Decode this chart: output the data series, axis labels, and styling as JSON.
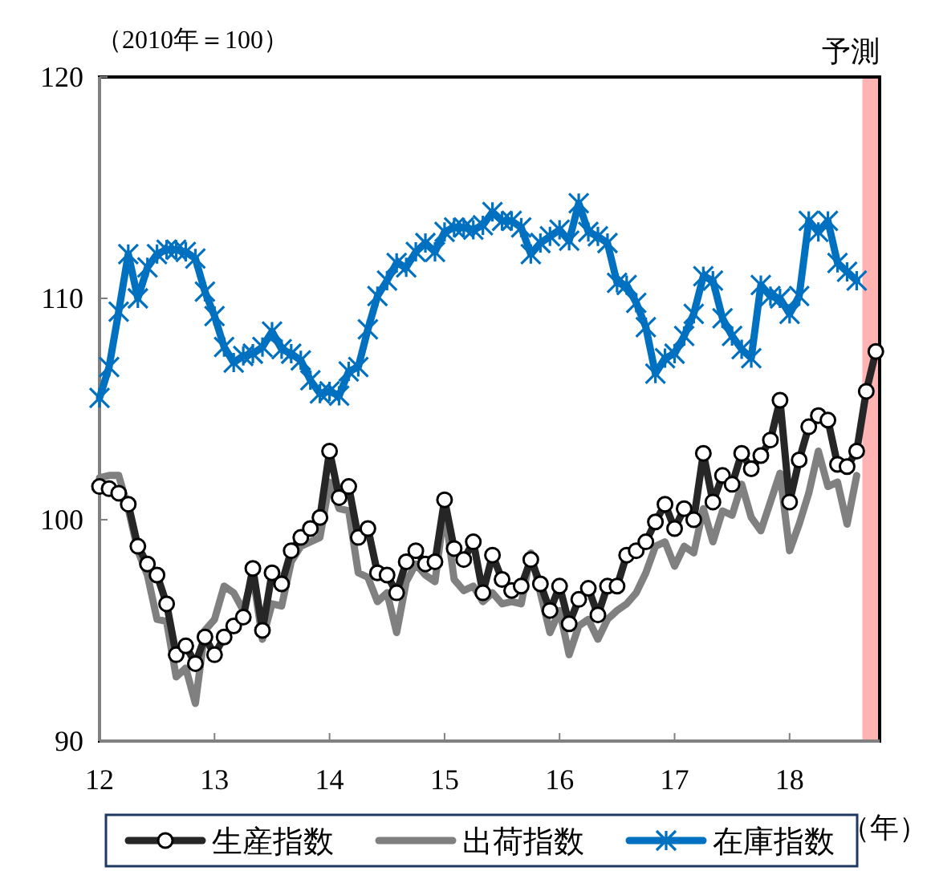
{
  "chart_data": {
    "type": "line",
    "ylabel": "（2010年＝100）",
    "xlabel": "（年）",
    "x": [
      "2012-01",
      "2012-02",
      "2012-03",
      "2012-04",
      "2012-05",
      "2012-06",
      "2012-07",
      "2012-08",
      "2012-09",
      "2012-10",
      "2012-11",
      "2012-12",
      "2013-01",
      "2013-02",
      "2013-03",
      "2013-04",
      "2013-05",
      "2013-06",
      "2013-07",
      "2013-08",
      "2013-09",
      "2013-10",
      "2013-11",
      "2013-12",
      "2014-01",
      "2014-02",
      "2014-03",
      "2014-04",
      "2014-05",
      "2014-06",
      "2014-07",
      "2014-08",
      "2014-09",
      "2014-10",
      "2014-11",
      "2014-12",
      "2015-01",
      "2015-02",
      "2015-03",
      "2015-04",
      "2015-05",
      "2015-06",
      "2015-07",
      "2015-08",
      "2015-09",
      "2015-10",
      "2015-11",
      "2015-12",
      "2016-01",
      "2016-02",
      "2016-03",
      "2016-04",
      "2016-05",
      "2016-06",
      "2016-07",
      "2016-08",
      "2016-09",
      "2016-10",
      "2016-11",
      "2016-12",
      "2017-01",
      "2017-02",
      "2017-03",
      "2017-04",
      "2017-05",
      "2017-06",
      "2017-07",
      "2017-08",
      "2017-09",
      "2017-10",
      "2017-11",
      "2017-12",
      "2018-01",
      "2018-02",
      "2018-03",
      "2018-04",
      "2018-05",
      "2018-06",
      "2018-07",
      "2018-08",
      "2018-09",
      "2018-10"
    ],
    "series": [
      {
        "name": "生産指数",
        "color": "#262626",
        "marker": "circle",
        "values": [
          101.5,
          101.4,
          101.2,
          100.7,
          98.8,
          98.0,
          97.5,
          96.2,
          93.9,
          94.3,
          93.5,
          94.7,
          93.9,
          94.7,
          95.2,
          95.6,
          97.8,
          95.0,
          97.6,
          97.1,
          98.6,
          99.2,
          99.6,
          100.1,
          103.1,
          101.0,
          101.5,
          99.2,
          99.6,
          97.6,
          97.5,
          96.7,
          98.1,
          98.6,
          98.0,
          98.1,
          100.9,
          98.7,
          98.2,
          99.0,
          96.7,
          98.4,
          97.3,
          96.8,
          97.0,
          98.2,
          97.1,
          95.9,
          97.0,
          95.3,
          96.4,
          96.9,
          95.7,
          97.0,
          97.0,
          98.4,
          98.6,
          99.0,
          99.9,
          100.7,
          99.6,
          100.5,
          100.0,
          103.0,
          100.8,
          102.0,
          101.6,
          103.0,
          102.3,
          102.9,
          103.6,
          105.4,
          100.8,
          102.7,
          104.2,
          104.7,
          104.5,
          102.5,
          102.4,
          103.1,
          105.8,
          107.6
        ]
      },
      {
        "name": "出荷指数",
        "color": "#808080",
        "marker": "none",
        "values": [
          101.9,
          102.0,
          102.0,
          100.5,
          98.6,
          97.5,
          95.5,
          95.4,
          92.9,
          93.3,
          91.7,
          95.0,
          95.5,
          97.0,
          96.7,
          95.9,
          97.5,
          94.6,
          96.2,
          96.1,
          98.1,
          98.8,
          99.0,
          99.2,
          101.7,
          100.5,
          100.4,
          97.6,
          97.4,
          96.3,
          96.7,
          94.9,
          97.2,
          98.0,
          97.5,
          97.2,
          100.5,
          97.3,
          96.8,
          97.0,
          96.3,
          96.7,
          96.2,
          96.3,
          96.2,
          98.5,
          96.7,
          94.9,
          95.9,
          93.9,
          95.2,
          95.5,
          94.6,
          95.5,
          95.9,
          96.2,
          96.7,
          97.6,
          98.8,
          99.0,
          97.9,
          98.8,
          98.5,
          100.5,
          99.0,
          100.4,
          100.2,
          101.6,
          100.1,
          99.5,
          100.8,
          102.1,
          98.6,
          99.8,
          101.2,
          103.1,
          101.5,
          101.7,
          99.8,
          102.0,
          null,
          null
        ]
      },
      {
        "name": "在庫指数",
        "color": "#0070c0",
        "marker": "cross",
        "values": [
          105.5,
          106.9,
          109.4,
          112.0,
          110.0,
          111.4,
          112.0,
          112.2,
          112.2,
          112.1,
          111.8,
          110.3,
          109.2,
          107.8,
          107.1,
          107.4,
          107.5,
          107.8,
          108.5,
          107.7,
          107.5,
          107.2,
          106.3,
          105.7,
          105.8,
          105.6,
          106.7,
          106.9,
          108.6,
          110.1,
          110.8,
          111.6,
          111.4,
          112.1,
          112.5,
          112.1,
          113.0,
          113.2,
          113.2,
          113.1,
          113.3,
          113.9,
          113.5,
          113.5,
          113.2,
          112.0,
          112.5,
          112.8,
          113.1,
          112.6,
          114.3,
          113.0,
          112.8,
          112.5,
          110.7,
          110.6,
          109.8,
          108.7,
          106.6,
          107.3,
          107.5,
          108.3,
          109.3,
          111.0,
          110.8,
          109.1,
          108.3,
          107.7,
          107.3,
          110.6,
          110.1,
          110.0,
          109.3,
          110.1,
          113.5,
          113.0,
          113.5,
          111.6,
          111.2,
          110.8,
          null,
          null
        ]
      }
    ],
    "xlim": [
      "2012-01-01",
      "2018-10-13"
    ],
    "xticks": [
      {
        "value": "2012-01-01",
        "label": "12"
      },
      {
        "value": "2013-01-01",
        "label": "13"
      },
      {
        "value": "2014-01-01",
        "label": "14"
      },
      {
        "value": "2015-01-01",
        "label": "15"
      },
      {
        "value": "2016-01-01",
        "label": "16"
      },
      {
        "value": "2017-01-01",
        "label": "17"
      },
      {
        "value": "2018-01-01",
        "label": "18"
      }
    ],
    "ylim": [
      90,
      120
    ],
    "yticks": [
      90,
      100,
      110,
      120
    ],
    "bands": [
      {
        "axis": "x",
        "from": "2018-08-19",
        "to": "2018-10-13",
        "label": "予測",
        "color": "#ffb3b3"
      }
    ],
    "legend": "bottom",
    "grid": false,
    "line_style": "solid"
  }
}
